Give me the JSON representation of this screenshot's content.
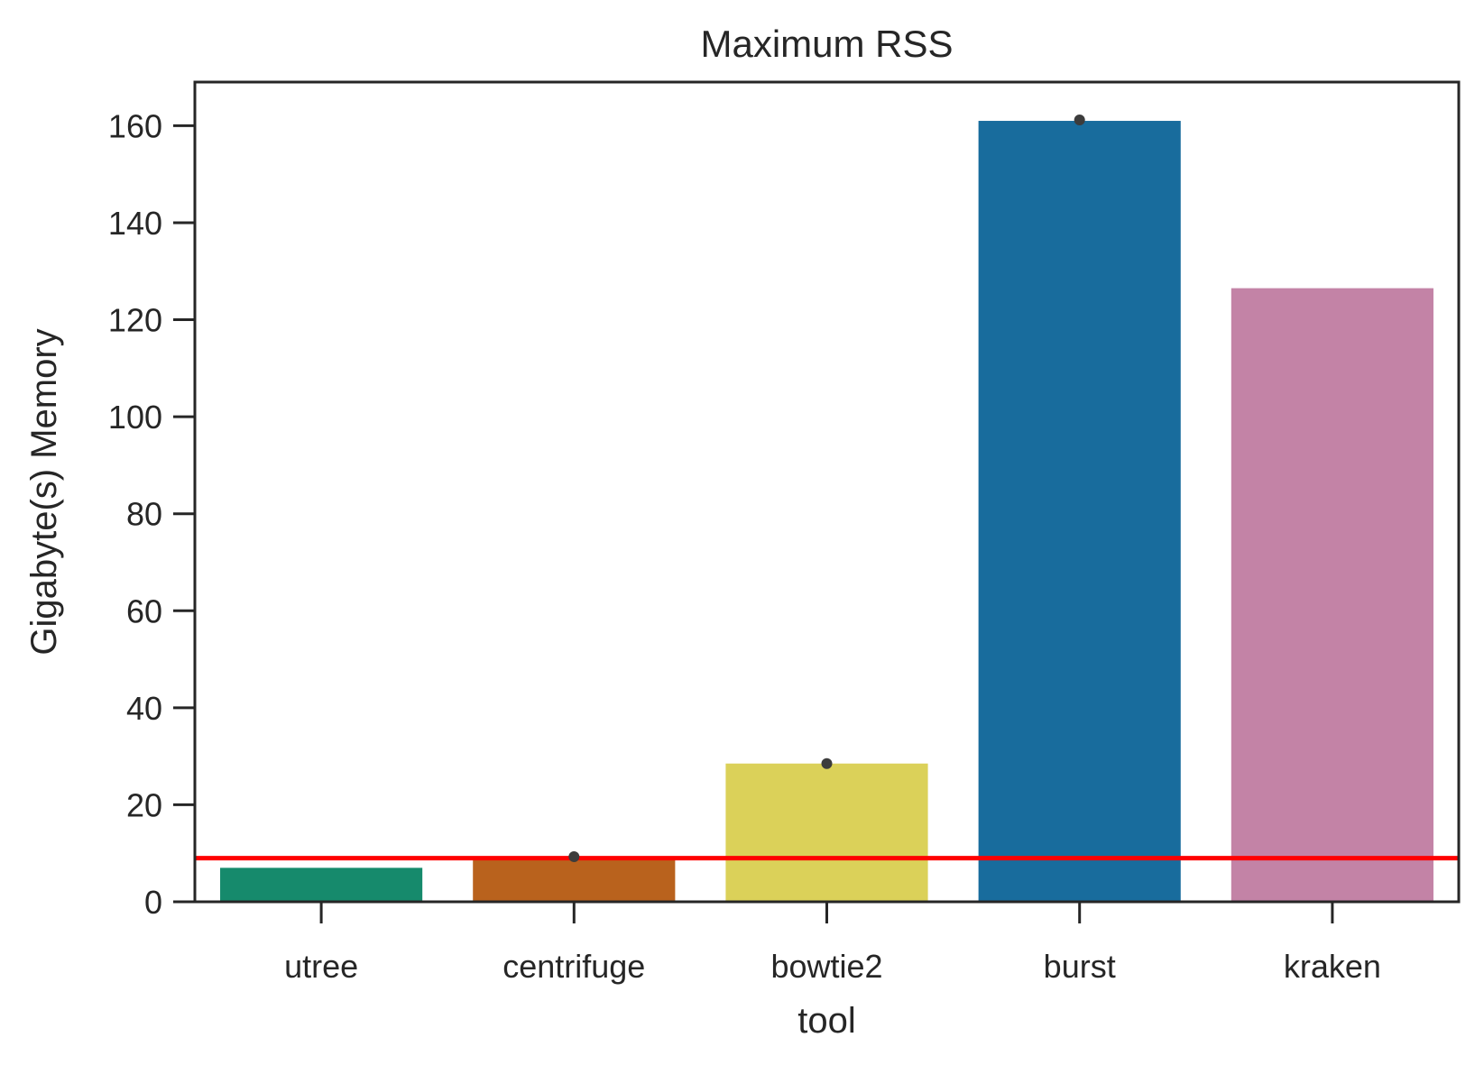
{
  "chart_data": {
    "type": "bar",
    "title": "Maximum RSS",
    "xlabel": "tool",
    "ylabel": "Gigabyte(s) Memory",
    "categories": [
      "utree",
      "centrifuge",
      "bowtie2",
      "burst",
      "kraken"
    ],
    "values": [
      7,
      9,
      28.5,
      161,
      126.5
    ],
    "error_points": [
      null,
      9.3,
      28.5,
      161.2,
      null
    ],
    "colors": [
      "#168a6c",
      "#b9621d",
      "#dbd159",
      "#186c9d",
      "#c383a6"
    ],
    "ylim": [
      0,
      169
    ],
    "yticks": [
      0,
      20,
      40,
      60,
      80,
      100,
      120,
      140,
      160
    ],
    "reference_line": {
      "y": 9,
      "color": "#ff0000"
    },
    "grid": false,
    "legend": "none"
  }
}
